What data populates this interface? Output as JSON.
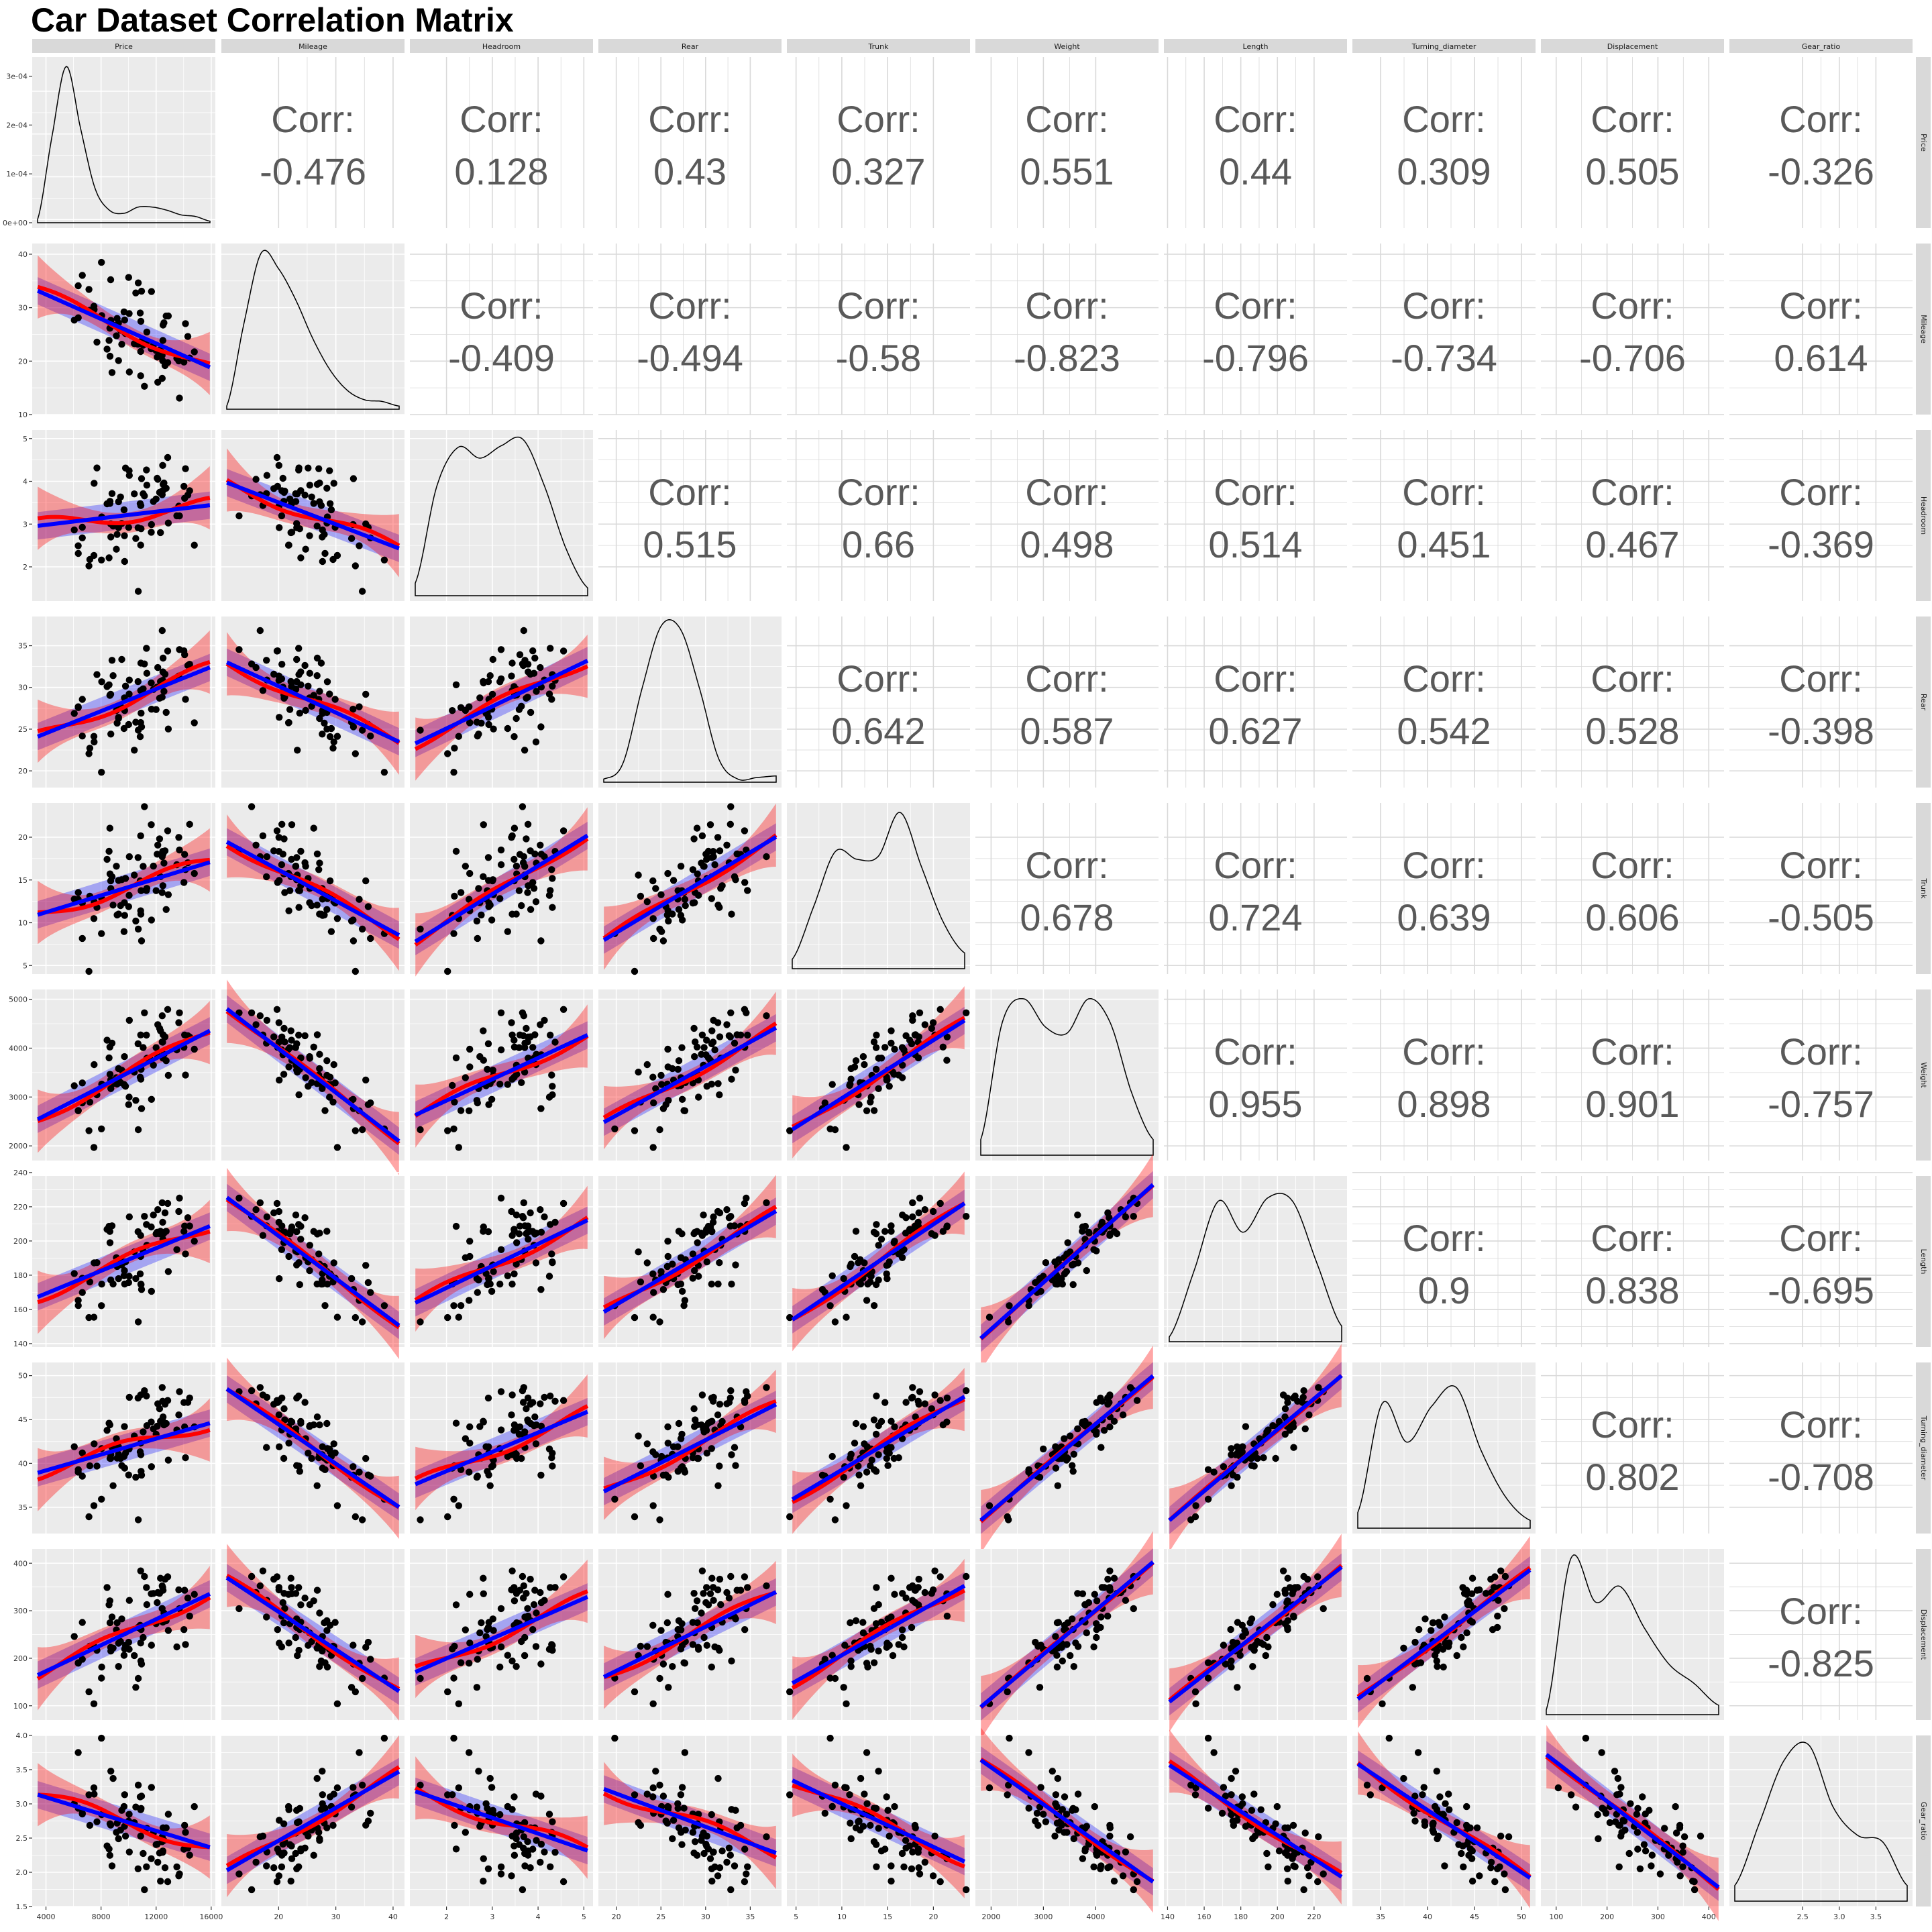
{
  "title": "Car Dataset Correlation Matrix",
  "chart_data": {
    "type": "scatter-matrix",
    "title": "Car Dataset Correlation Matrix",
    "variables": [
      "Price",
      "Mileage",
      "Headroom",
      "Rear",
      "Trunk",
      "Weight",
      "Length",
      "Turning_diameter",
      "Displacement",
      "Gear_ratio"
    ],
    "corr_label": "Corr:",
    "correlations": [
      [
        "",
        "-0.476",
        "0.128",
        "0.43",
        "0.327",
        "0.551",
        "0.44",
        "0.309",
        "0.505",
        "-0.326"
      ],
      [
        "",
        "",
        "-0.409",
        "-0.494",
        "-0.58",
        "-0.823",
        "-0.796",
        "-0.734",
        "-0.706",
        "0.614"
      ],
      [
        "",
        "",
        "",
        "0.515",
        "0.66",
        "0.498",
        "0.514",
        "0.451",
        "0.467",
        "-0.369"
      ],
      [
        "",
        "",
        "",
        "",
        "0.642",
        "0.587",
        "0.627",
        "0.542",
        "0.528",
        "-0.398"
      ],
      [
        "",
        "",
        "",
        "",
        "",
        "0.678",
        "0.724",
        "0.639",
        "0.606",
        "-0.505"
      ],
      [
        "",
        "",
        "",
        "",
        "",
        "",
        "0.955",
        "0.898",
        "0.901",
        "-0.757"
      ],
      [
        "",
        "",
        "",
        "",
        "",
        "",
        "",
        "0.9",
        "0.838",
        "-0.695"
      ],
      [
        "",
        "",
        "",
        "",
        "",
        "",
        "",
        "",
        "0.802",
        "-0.708"
      ],
      [
        "",
        "",
        "",
        "",
        "",
        "",
        "",
        "",
        "",
        "-0.825"
      ],
      [
        "",
        "",
        "",
        "",
        "",
        "",
        "",
        "",
        "",
        ""
      ]
    ],
    "ranges": [
      [
        3000,
        16300
      ],
      [
        10,
        42
      ],
      [
        1.2,
        5.2
      ],
      [
        18,
        38.5
      ],
      [
        4,
        24
      ],
      [
        1700,
        5200
      ],
      [
        138,
        238
      ],
      [
        32,
        51.5
      ],
      [
        70,
        430
      ],
      [
        1.5,
        4.0
      ]
    ],
    "x_ticks": [
      {
        "v": [
          4000,
          8000,
          12000,
          16000
        ],
        "l": [
          "4000",
          "8000",
          "12000",
          "16000"
        ]
      },
      {
        "v": [
          20,
          30,
          40
        ],
        "l": [
          "20",
          "30",
          "40"
        ]
      },
      {
        "v": [
          2,
          3,
          4,
          5
        ],
        "l": [
          "2",
          "3",
          "4",
          "5"
        ]
      },
      {
        "v": [
          20,
          25,
          30,
          35
        ],
        "l": [
          "20",
          "25",
          "30",
          "35"
        ]
      },
      {
        "v": [
          5,
          10,
          15,
          20
        ],
        "l": [
          "5",
          "10",
          "15",
          "20"
        ]
      },
      {
        "v": [
          2000,
          3000,
          4000
        ],
        "l": [
          "2000",
          "3000",
          "4000"
        ]
      },
      {
        "v": [
          140,
          160,
          180,
          200,
          220
        ],
        "l": [
          "140",
          "160",
          "180",
          "200",
          "220"
        ]
      },
      {
        "v": [
          35,
          40,
          45,
          50
        ],
        "l": [
          "35",
          "40",
          "45",
          "50"
        ]
      },
      {
        "v": [
          100,
          200,
          300,
          400
        ],
        "l": [
          "100",
          "200",
          "300",
          "400"
        ]
      },
      {
        "v": [
          2.5,
          3.0,
          3.5
        ],
        "l": [
          "2.5",
          "3.0",
          "3.5"
        ]
      }
    ],
    "y_ticks": [
      {
        "v": [
          0,
          0.0001,
          0.0002,
          0.0003
        ],
        "l": [
          "0e+00",
          "1e-04",
          "2e-04",
          "3e-04"
        ],
        "density_max": 0.00032
      },
      {
        "v": [
          10,
          20,
          30,
          40
        ],
        "l": [
          "10",
          "20",
          "30",
          "40"
        ]
      },
      {
        "v": [
          2,
          3,
          4,
          5
        ],
        "l": [
          "2",
          "3",
          "4",
          "5"
        ]
      },
      {
        "v": [
          20,
          25,
          30,
          35
        ],
        "l": [
          "20",
          "25",
          "30",
          "35"
        ]
      },
      {
        "v": [
          5,
          10,
          15,
          20
        ],
        "l": [
          "5",
          "10",
          "15",
          "20"
        ]
      },
      {
        "v": [
          2000,
          3000,
          4000,
          5000
        ],
        "l": [
          "2000",
          "3000",
          "4000",
          "5000"
        ]
      },
      {
        "v": [
          140,
          160,
          180,
          200,
          220,
          240
        ],
        "l": [
          "140",
          "160",
          "180",
          "200",
          "220",
          "240"
        ]
      },
      {
        "v": [
          35,
          40,
          45,
          50
        ],
        "l": [
          "35",
          "40",
          "45",
          "50"
        ]
      },
      {
        "v": [
          100,
          200,
          300,
          400
        ],
        "l": [
          "100",
          "200",
          "300",
          "400"
        ]
      },
      {
        "v": [
          1.5,
          2.0,
          2.5,
          3.0,
          3.5,
          4.0
        ],
        "l": [
          "1.5",
          "2.0",
          "2.5",
          "3.0",
          "3.5",
          "4.0"
        ]
      }
    ],
    "density_profiles": [
      [
        0.02,
        0.55,
        1.0,
        0.6,
        0.22,
        0.08,
        0.06,
        0.1,
        0.1,
        0.08,
        0.05,
        0.04,
        0.01
      ],
      [
        0.02,
        0.55,
        1.0,
        0.9,
        0.7,
        0.45,
        0.25,
        0.12,
        0.06,
        0.05,
        0.02
      ],
      [
        0.08,
        0.7,
        0.95,
        0.88,
        0.96,
        1.0,
        0.7,
        0.3,
        0.05
      ],
      [
        0.02,
        0.12,
        0.6,
        1.0,
        0.98,
        0.6,
        0.15,
        0.02,
        0.03,
        0.04
      ],
      [
        0.06,
        0.4,
        0.75,
        0.7,
        0.72,
        1.0,
        0.65,
        0.3,
        0.1
      ],
      [
        0.1,
        0.85,
        1.0,
        0.82,
        0.78,
        1.0,
        0.85,
        0.4,
        0.1
      ],
      [
        0.03,
        0.45,
        0.9,
        0.7,
        0.92,
        0.9,
        0.5,
        0.1
      ],
      [
        0.1,
        0.8,
        0.55,
        0.78,
        0.9,
        0.5,
        0.2,
        0.05
      ],
      [
        0.03,
        1.0,
        0.72,
        0.82,
        0.55,
        0.32,
        0.2,
        0.06
      ],
      [
        0.1,
        0.5,
        0.9,
        1.0,
        0.6,
        0.42,
        0.38,
        0.1
      ]
    ],
    "scatter_seed": 7,
    "series": [
      {
        "name": "points",
        "color": "#000000"
      },
      {
        "name": "loess smooth",
        "color": "#ff0000"
      },
      {
        "name": "linear fit",
        "color": "#0000ff"
      }
    ],
    "panel_background": "#ebebeb",
    "strip_background": "#d9d9d9"
  }
}
